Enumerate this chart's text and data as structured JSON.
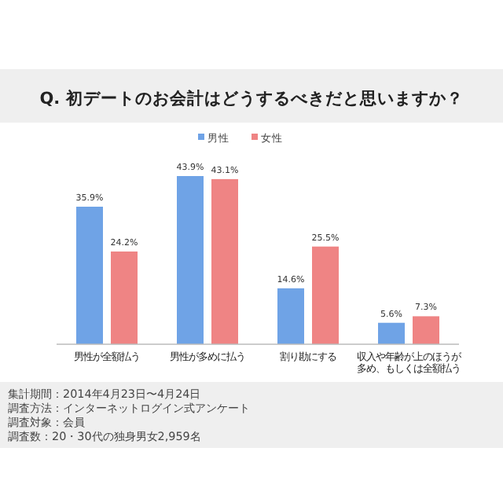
{
  "chart_data": {
    "type": "bar",
    "title": "Q. 初デートのお会計はどうするべきだと思いますか？",
    "categories": [
      "男性が全額払う",
      "男性が多めに払う",
      "割り勘にする",
      "収入や年齢が上のほうが多め、もしくは全額払う"
    ],
    "series": [
      {
        "name": "男性",
        "color": "#6fa3e6",
        "values": [
          35.9,
          43.9,
          14.6,
          5.6
        ],
        "value_labels": [
          "35.9%",
          "43.9%",
          "14.6%",
          "5.6%"
        ]
      },
      {
        "name": "女性",
        "color": "#ef8484",
        "values": [
          24.2,
          43.1,
          25.5,
          7.3
        ],
        "value_labels": [
          "24.2%",
          "43.1%",
          "25.5%",
          "7.3%"
        ]
      }
    ],
    "legend": "top",
    "annotations": [
      "集計期間：2014年4月23日〜4月24日",
      "調査方法：インターネットログイン式アンケート",
      "調査対象：会員",
      "調査数：20・30代の独身男女2,959名"
    ]
  }
}
